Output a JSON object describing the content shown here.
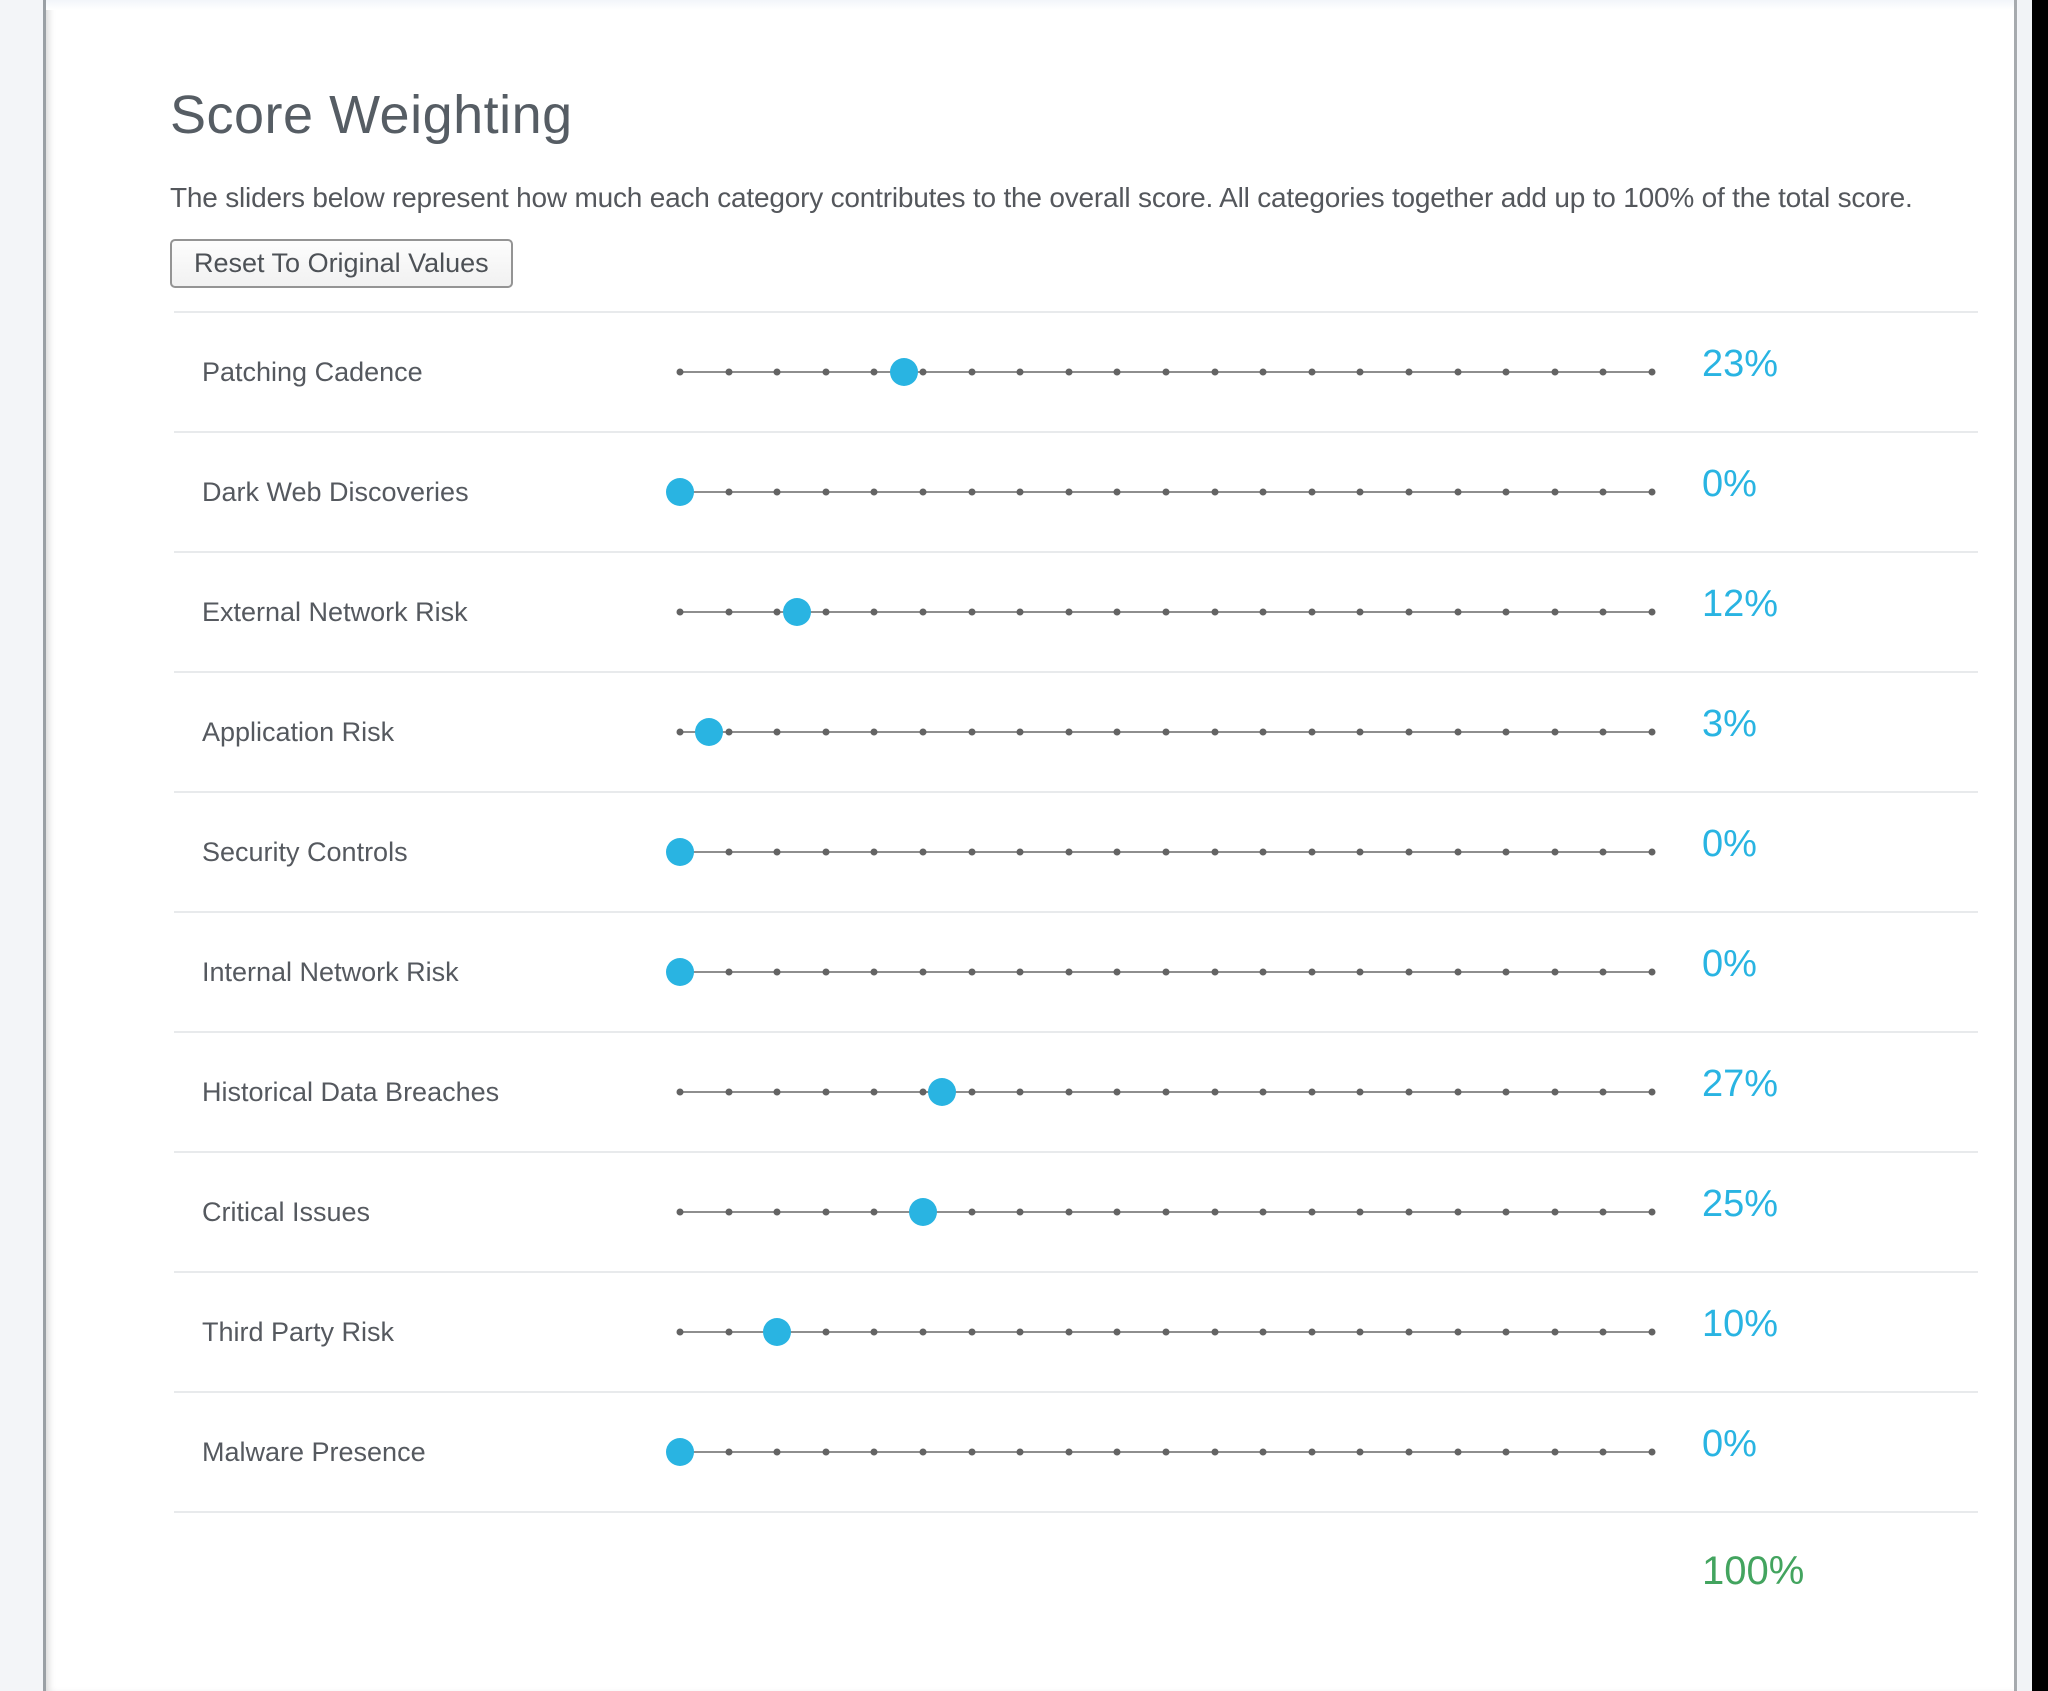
{
  "page": {
    "title": "Score Weighting",
    "description": "The sliders below represent how much each category contributes to the overall score. All categories together add up to 100% of the total score.",
    "reset_button_label": "Reset To Original Values"
  },
  "colors": {
    "accent_cyan": "#29b4e2",
    "total_green": "#43a45f",
    "label_gray": "#55595f"
  },
  "slider": {
    "min": 0,
    "max": 100,
    "tick_step": 5
  },
  "categories": [
    {
      "label": "Patching Cadence",
      "value": 23,
      "display": "23%"
    },
    {
      "label": "Dark Web Discoveries",
      "value": 0,
      "display": "0%"
    },
    {
      "label": "External Network Risk",
      "value": 12,
      "display": "12%"
    },
    {
      "label": "Application Risk",
      "value": 3,
      "display": "3%"
    },
    {
      "label": "Security Controls",
      "value": 0,
      "display": "0%"
    },
    {
      "label": "Internal Network Risk",
      "value": 0,
      "display": "0%"
    },
    {
      "label": "Historical Data Breaches",
      "value": 27,
      "display": "27%"
    },
    {
      "label": "Critical Issues",
      "value": 25,
      "display": "25%"
    },
    {
      "label": "Third Party Risk",
      "value": 10,
      "display": "10%"
    },
    {
      "label": "Malware Presence",
      "value": 0,
      "display": "0%"
    }
  ],
  "total": {
    "value": 100,
    "display": "100%"
  }
}
